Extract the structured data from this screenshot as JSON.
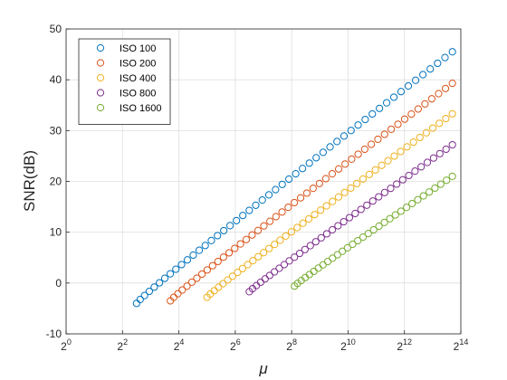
{
  "chart_data": {
    "type": "scatter",
    "xlabel": "μ",
    "ylabel": "SNR(dB)",
    "xscale": "log2",
    "xlim": [
      1,
      16384
    ],
    "ylim": [
      -10,
      50
    ],
    "xticks": [
      {
        "exp": "0"
      },
      {
        "exp": "2"
      },
      {
        "exp": "4"
      },
      {
        "exp": "6"
      },
      {
        "exp": "8"
      },
      {
        "exp": "10"
      },
      {
        "exp": "12"
      },
      {
        "exp": "14"
      }
    ],
    "xtick_base": "2",
    "yticks": [
      "-10",
      "0",
      "10",
      "20",
      "30",
      "40",
      "50"
    ],
    "yticks_values": [
      -10,
      0,
      10,
      20,
      30,
      40,
      50
    ],
    "grid": true,
    "legend_position": "top-left",
    "series": [
      {
        "name": "ISO  100",
        "color": "#0072BD",
        "log2_x_start": 2.5,
        "log2_x_end": 13.7,
        "y_start": -4.0,
        "y_end": 45.5,
        "n": 50
      },
      {
        "name": "ISO  200",
        "color": "#D95319",
        "log2_x_start": 3.7,
        "log2_x_end": 13.7,
        "y_start": -3.5,
        "y_end": 39.3,
        "n": 48
      },
      {
        "name": "ISO  400",
        "color": "#EDB120",
        "log2_x_start": 5.0,
        "log2_x_end": 13.7,
        "y_start": -2.8,
        "y_end": 33.3,
        "n": 44
      },
      {
        "name": "ISO  800",
        "color": "#7E2F8E",
        "log2_x_start": 6.5,
        "log2_x_end": 13.7,
        "y_start": -1.7,
        "y_end": 27.2,
        "n": 38
      },
      {
        "name": "ISO 1600",
        "color": "#77AC30",
        "log2_x_start": 8.1,
        "log2_x_end": 13.7,
        "y_start": -0.6,
        "y_end": 21.0,
        "n": 32
      }
    ]
  }
}
